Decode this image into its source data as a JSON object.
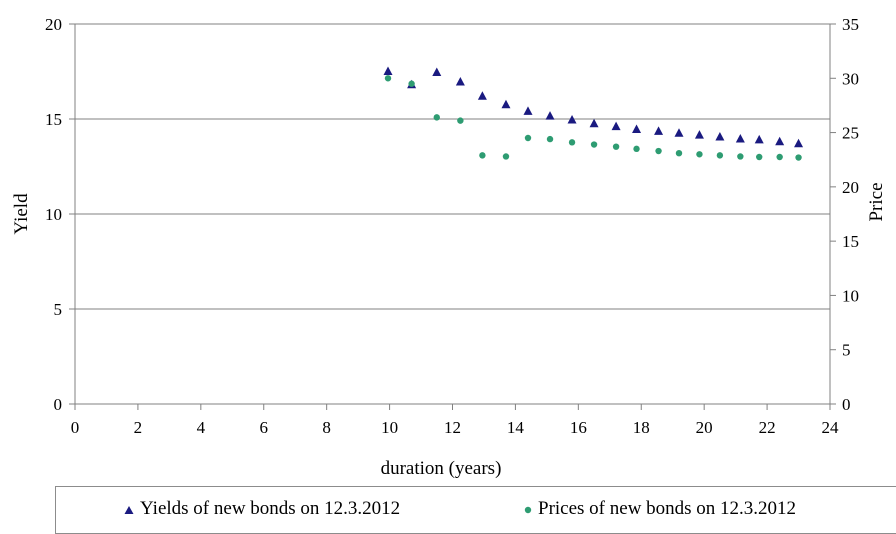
{
  "chart_data": {
    "type": "scatter",
    "xlabel": "duration (years)",
    "ylabel": "Yield",
    "y2label": "Price",
    "xlim": [
      0,
      24
    ],
    "ylim": [
      0,
      20
    ],
    "y2lim": [
      0,
      35
    ],
    "x_ticks": [
      "0",
      "2",
      "4",
      "6",
      "8",
      "10",
      "12",
      "14",
      "16",
      "18",
      "20",
      "22",
      "24"
    ],
    "y_ticks": [
      "0",
      "5",
      "10",
      "15",
      "20"
    ],
    "y2_ticks": [
      "0",
      "5",
      "10",
      "15",
      "20",
      "25",
      "30",
      "35"
    ],
    "grid": "horizontal",
    "legend_position": "bottom",
    "series": [
      {
        "name": "Yields of new bonds on 12.3.2012",
        "axis": "left",
        "marker": "triangle",
        "color": "#1a1a80",
        "x": [
          9.95,
          10.7,
          11.5,
          12.25,
          12.95,
          13.7,
          14.4,
          15.1,
          15.8,
          16.5,
          17.2,
          17.85,
          18.55,
          19.2,
          19.85,
          20.5,
          21.15,
          21.75,
          22.4,
          23.0
        ],
        "y": [
          17.5,
          16.8,
          17.45,
          16.95,
          16.2,
          15.75,
          15.4,
          15.15,
          14.95,
          14.75,
          14.6,
          14.45,
          14.35,
          14.25,
          14.15,
          14.05,
          13.95,
          13.9,
          13.8,
          13.7
        ]
      },
      {
        "name": "Prices of new bonds on 12.3.2012",
        "axis": "right",
        "marker": "circle",
        "color": "#2e9c72",
        "x": [
          9.95,
          10.7,
          11.5,
          12.25,
          12.95,
          13.7,
          14.4,
          15.1,
          15.8,
          16.5,
          17.2,
          17.85,
          18.55,
          19.2,
          19.85,
          20.5,
          21.15,
          21.75,
          22.4,
          23.0
        ],
        "y": [
          30.0,
          29.5,
          26.4,
          26.1,
          22.9,
          22.8,
          24.5,
          24.4,
          24.1,
          23.9,
          23.7,
          23.5,
          23.3,
          23.1,
          23.0,
          22.9,
          22.8,
          22.75,
          22.75,
          22.7
        ]
      }
    ]
  }
}
